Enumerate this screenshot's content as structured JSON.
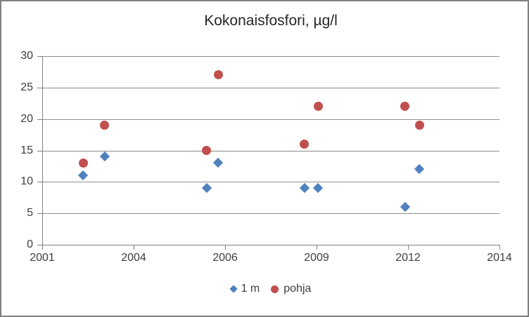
{
  "window": {
    "background": "#ffffff",
    "border_color": "#808080"
  },
  "chart_data": {
    "type": "scatter",
    "title": "Kokonaisfosfori, µg/l",
    "xlabel": "",
    "ylabel": "",
    "x_ticks": [
      2001,
      2004,
      2006,
      2009,
      2012,
      2014
    ],
    "y_ticks": [
      0,
      5,
      10,
      15,
      20,
      25,
      30
    ],
    "ylim": [
      0,
      30
    ],
    "grid": true,
    "legend_position": "bottom",
    "series": [
      {
        "name": "1 m",
        "marker": "diamond",
        "color": "#4F81BD",
        "points": [
          [
            2002.35,
            11
          ],
          [
            2003.05,
            14
          ],
          [
            2005.6,
            9
          ],
          [
            2005.85,
            13
          ],
          [
            2008.6,
            9
          ],
          [
            2009.05,
            9
          ],
          [
            2011.9,
            6
          ],
          [
            2012.25,
            12
          ]
        ]
      },
      {
        "name": "pohja",
        "marker": "circle",
        "color": "#C0504D",
        "points": [
          [
            2002.35,
            13
          ],
          [
            2003.05,
            19
          ],
          [
            2005.6,
            15
          ],
          [
            2005.85,
            27
          ],
          [
            2008.6,
            16
          ],
          [
            2009.05,
            22
          ],
          [
            2011.9,
            22
          ],
          [
            2012.25,
            19
          ]
        ]
      }
    ],
    "colors": {
      "gridline": "#8c8c8c",
      "axis": "#808080",
      "tick_text": "#3d3d3d",
      "title_text": "#262626"
    }
  }
}
